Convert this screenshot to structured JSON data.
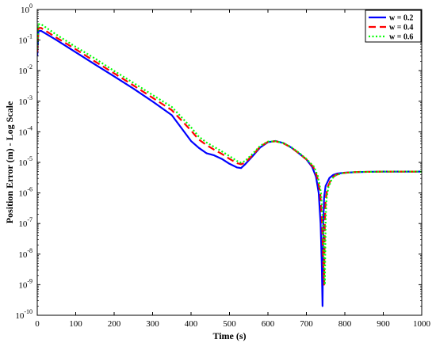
{
  "chart_data": {
    "type": "line",
    "xlabel": "Time (s)",
    "ylabel": "Position Error (m) - Log Scale",
    "xlim": [
      0,
      1000
    ],
    "ylim": [
      1e-10,
      1
    ],
    "yscale": "log",
    "grid": false,
    "legend_position": "top-right",
    "x_ticks": [
      0,
      100,
      200,
      300,
      400,
      500,
      600,
      700,
      800,
      900,
      1000
    ],
    "x_tick_labels": [
      "0",
      "100",
      "200",
      "300",
      "400",
      "500",
      "600",
      "700",
      "800",
      "900",
      "1000"
    ],
    "y_ticks": [
      -10,
      -9,
      -8,
      -7,
      -6,
      -5,
      -4,
      -3,
      -2,
      -1,
      0
    ],
    "y_tick_labels": [
      {
        "base": "10",
        "exp": "-10"
      },
      {
        "base": "10",
        "exp": "-9"
      },
      {
        "base": "10",
        "exp": "-8"
      },
      {
        "base": "10",
        "exp": "-7"
      },
      {
        "base": "10",
        "exp": "-6"
      },
      {
        "base": "10",
        "exp": "-5"
      },
      {
        "base": "10",
        "exp": "-4"
      },
      {
        "base": "10",
        "exp": "-3"
      },
      {
        "base": "10",
        "exp": "-2"
      },
      {
        "base": "10",
        "exp": "-1"
      },
      {
        "base": "10",
        "exp": "0"
      }
    ],
    "series": [
      {
        "name": "w = 0.2",
        "color": "#0000ff",
        "dash": "solid",
        "x": [
          0,
          3,
          10,
          50,
          100,
          150,
          200,
          250,
          300,
          350,
          400,
          420,
          440,
          460,
          480,
          500,
          520,
          530,
          540,
          560,
          580,
          600,
          620,
          640,
          660,
          680,
          700,
          715,
          725,
          732,
          737,
          740,
          742,
          744,
          746,
          750,
          760,
          770,
          780,
          800,
          830,
          860,
          900,
          950,
          1000
        ],
        "y": [
          0.03,
          0.2,
          0.2,
          0.1,
          0.04,
          0.016,
          0.0065,
          0.0026,
          0.00098,
          0.00035,
          5e-05,
          3e-05,
          2e-05,
          1.7e-05,
          1.3e-05,
          9e-06,
          6.8e-06,
          6.5e-06,
          8.5e-06,
          1.6e-05,
          3.1e-05,
          4.6e-05,
          5e-05,
          4.3e-05,
          3.1e-05,
          2e-05,
          1.25e-05,
          7.1e-06,
          3.4e-06,
          1e-06,
          1e-07,
          5e-09,
          2e-10,
          1e-07,
          7e-07,
          1.7e-06,
          3.1e-06,
          3.9e-06,
          4.3e-06,
          4.6e-06,
          4.8e-06,
          4.9e-06,
          5e-06,
          5e-06,
          5e-06
        ]
      },
      {
        "name": "w = 0.4",
        "color": "#ff0000",
        "dash": "dashed",
        "x": [
          0,
          3,
          10,
          50,
          100,
          150,
          200,
          250,
          300,
          350,
          400,
          420,
          440,
          460,
          480,
          500,
          520,
          530,
          540,
          560,
          580,
          600,
          620,
          640,
          660,
          680,
          700,
          718,
          728,
          736,
          741,
          744,
          746,
          748,
          750,
          755,
          765,
          775,
          790,
          810,
          840,
          870,
          900,
          950,
          1000
        ],
        "y": [
          0.04,
          0.25,
          0.25,
          0.12,
          0.05,
          0.02,
          0.0082,
          0.0033,
          0.0013,
          0.00051,
          0.00011,
          5.6e-05,
          3.7e-05,
          2.6e-05,
          1.9e-05,
          1.3e-05,
          9.4e-06,
          8.7e-06,
          9.7e-06,
          1.7e-05,
          3.3e-05,
          4.7e-05,
          4.9e-05,
          4.2e-05,
          3.1e-05,
          2e-05,
          1.26e-05,
          7.1e-06,
          3.4e-06,
          1e-06,
          1e-07,
          5e-09,
          1e-09,
          1e-07,
          6e-07,
          1.5e-06,
          3e-06,
          3.8e-06,
          4.4e-06,
          4.7e-06,
          4.9e-06,
          4.9e-06,
          5e-06,
          5e-06,
          5e-06
        ]
      },
      {
        "name": "w = 0.6",
        "color": "#00ff00",
        "dash": "dotted",
        "x": [
          0,
          3,
          10,
          50,
          100,
          150,
          200,
          250,
          300,
          350,
          400,
          420,
          440,
          460,
          480,
          500,
          520,
          530,
          540,
          560,
          580,
          600,
          620,
          640,
          660,
          680,
          700,
          720,
          730,
          738,
          743,
          746,
          748,
          750,
          752,
          757,
          767,
          777,
          792,
          812,
          842,
          872,
          900,
          950,
          1000
        ],
        "y": [
          0.05,
          0.33,
          0.33,
          0.15,
          0.06,
          0.025,
          0.0098,
          0.004,
          0.0016,
          0.00065,
          0.00014,
          7e-05,
          4.5e-05,
          3.2e-05,
          2.3e-05,
          1.6e-05,
          1.1e-05,
          9.8e-06,
          1.1e-05,
          1.9e-05,
          3.5e-05,
          4.8e-05,
          4.9e-05,
          4.3e-05,
          3.2e-05,
          2.1e-05,
          1.3e-05,
          7.2e-06,
          3.5e-06,
          1e-06,
          1e-07,
          5e-09,
          1e-09,
          1e-07,
          6e-07,
          1.5e-06,
          3e-06,
          3.8e-06,
          4.4e-06,
          4.7e-06,
          4.9e-06,
          4.9e-06,
          5e-06,
          5e-06,
          5e-06
        ]
      }
    ]
  }
}
